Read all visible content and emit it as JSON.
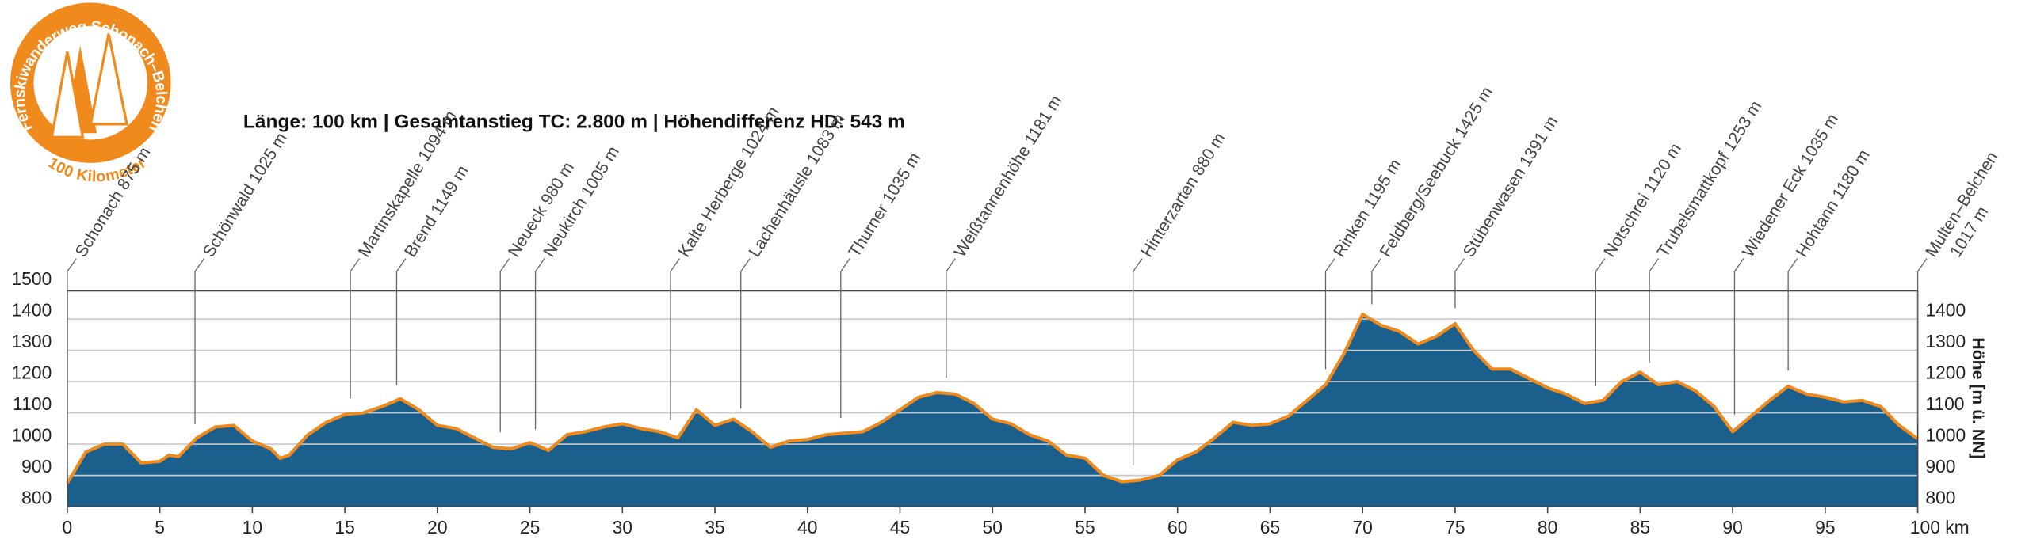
{
  "logo": {
    "top": "Fernskiwanderweg Schonach–Belchen",
    "bottom": "100 Kilometer"
  },
  "chart_data": {
    "type": "area",
    "title": "Länge: 100 km | Gesamtanstieg TC: 2.800 m | Höhendifferenz HD: 543 m",
    "y2label": "Höhe [m ü. NN]",
    "fill": "#1b5f8c",
    "line_color": "#f08a1c",
    "x": [
      0,
      1,
      2,
      3,
      4,
      5,
      5.5,
      6,
      7,
      8,
      9,
      10,
      11,
      11.5,
      12,
      13,
      14,
      15,
      16,
      17,
      18,
      19,
      20,
      21,
      22,
      23,
      24,
      25,
      26,
      27,
      28,
      29,
      30,
      31,
      32,
      33,
      34,
      35,
      36,
      37,
      38,
      39,
      40,
      41,
      42,
      43,
      44,
      45,
      46,
      47,
      48,
      49,
      50,
      51,
      52,
      53,
      54,
      55,
      56,
      57,
      58,
      59,
      60,
      61,
      62,
      63,
      64,
      65,
      66,
      67,
      68,
      69,
      70,
      71,
      72,
      73,
      74,
      75,
      76,
      77,
      78,
      79,
      80,
      81,
      82,
      83,
      84,
      85,
      86,
      87,
      88,
      89,
      90,
      91,
      92,
      93,
      94,
      95,
      96,
      97,
      98,
      99,
      100
    ],
    "values": [
      875,
      975,
      1000,
      1000,
      940,
      945,
      965,
      960,
      1020,
      1055,
      1060,
      1010,
      985,
      955,
      965,
      1030,
      1070,
      1095,
      1100,
      1120,
      1145,
      1110,
      1060,
      1050,
      1020,
      990,
      985,
      1005,
      980,
      1030,
      1040,
      1055,
      1065,
      1050,
      1040,
      1020,
      1110,
      1060,
      1080,
      1040,
      990,
      1010,
      1015,
      1030,
      1035,
      1040,
      1070,
      1110,
      1150,
      1165,
      1160,
      1130,
      1080,
      1065,
      1030,
      1010,
      965,
      955,
      900,
      880,
      885,
      900,
      950,
      975,
      1020,
      1070,
      1060,
      1065,
      1090,
      1140,
      1190,
      1290,
      1415,
      1380,
      1360,
      1320,
      1345,
      1385,
      1300,
      1240,
      1240,
      1210,
      1180,
      1160,
      1130,
      1140,
      1200,
      1230,
      1190,
      1200,
      1170,
      1120,
      1040,
      1090,
      1140,
      1185,
      1160,
      1150,
      1135,
      1140,
      1120,
      1060,
      1017
    ],
    "xlim": [
      0,
      100
    ],
    "xticks": [
      0,
      5,
      10,
      15,
      20,
      25,
      30,
      35,
      40,
      45,
      50,
      55,
      60,
      65,
      70,
      75,
      80,
      85,
      90,
      95,
      {
        "value": 100,
        "label": "100 km"
      }
    ],
    "ylim": [
      800,
      1490
    ],
    "yticks": [
      800,
      900,
      1000,
      1100,
      1200,
      1300,
      1400,
      1500
    ],
    "y2ticks": [
      800,
      900,
      1000,
      1100,
      1200,
      1300,
      1400
    ],
    "grid": true,
    "waypoints": [
      {
        "km": 0,
        "lines": [
          "Schonach 875 m"
        ]
      },
      {
        "km": 6.9,
        "lines": [
          "Schönwald 1025 m"
        ]
      },
      {
        "km": 15.3,
        "lines": [
          "Martinskapelle 1094 m"
        ]
      },
      {
        "km": 17.8,
        "lines": [
          "Brend 1149 m"
        ]
      },
      {
        "km": 23.4,
        "lines": [
          "Neueck 980 m"
        ]
      },
      {
        "km": 25.3,
        "lines": [
          "Neukirch 1005 m"
        ]
      },
      {
        "km": 32.6,
        "lines": [
          "Kalte Herberge 1024 m"
        ]
      },
      {
        "km": 36.4,
        "lines": [
          "Lachenhäusle 1083 m"
        ]
      },
      {
        "km": 41.8,
        "lines": [
          "Thurner 1035 m"
        ]
      },
      {
        "km": 47.5,
        "lines": [
          "Weißtannenhöhe 1181 m"
        ]
      },
      {
        "km": 57.6,
        "lines": [
          "Hinterzarten 880 m"
        ]
      },
      {
        "km": 68,
        "lines": [
          "Rinken 1195 m"
        ]
      },
      {
        "km": 70.5,
        "lines": [
          "Feldberg/Seebuck 1425 m"
        ]
      },
      {
        "km": 75,
        "lines": [
          "Stübenwasen 1391 m"
        ]
      },
      {
        "km": 82.6,
        "lines": [
          "Notschrei 1120 m"
        ]
      },
      {
        "km": 85.5,
        "lines": [
          "Trubelsmattkopf 1253 m"
        ]
      },
      {
        "km": 90.1,
        "lines": [
          "Wiedener Eck 1035 m"
        ]
      },
      {
        "km": 93,
        "lines": [
          "Hohtann 1180 m"
        ]
      },
      {
        "km": 100,
        "lines": [
          "Multen–Belchen",
          "1017 m"
        ]
      }
    ]
  }
}
